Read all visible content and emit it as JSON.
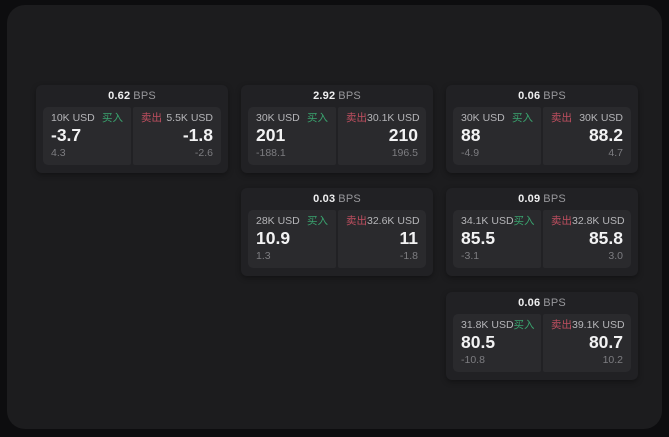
{
  "labels": {
    "bps": "BPS",
    "buy": "买入",
    "sell": "卖出"
  },
  "colors": {
    "background_outer": "#0d0d0f",
    "window_background": "#1c1c1e",
    "card_background": "#212124",
    "panel_background": "#2a2a2d",
    "buy_green": "#3aa46f",
    "sell_red": "#c04f60",
    "primary_text": "#f2f2f3",
    "label_gray": "#b5b5b8",
    "muted_gray": "#7d7d81"
  },
  "cards": [
    {
      "bps": "0.62",
      "buy": {
        "size": "10K USD",
        "price": "-3.7",
        "delta": "4.3"
      },
      "sell": {
        "size": "5.5K USD",
        "price": "-1.8",
        "delta": "-2.6"
      }
    },
    {
      "bps": "2.92",
      "buy": {
        "size": "30K USD",
        "price": "201",
        "delta": "-188.1"
      },
      "sell": {
        "size": "30.1K USD",
        "price": "210",
        "delta": "196.5"
      }
    },
    {
      "bps": "0.06",
      "buy": {
        "size": "30K USD",
        "price": "88",
        "delta": "-4.9"
      },
      "sell": {
        "size": "30K USD",
        "price": "88.2",
        "delta": "4.7"
      }
    },
    {
      "bps": "0.03",
      "buy": {
        "size": "28K USD",
        "price": "10.9",
        "delta": "1.3"
      },
      "sell": {
        "size": "32.6K USD",
        "price": "11",
        "delta": "-1.8"
      }
    },
    {
      "bps": "0.09",
      "buy": {
        "size": "34.1K USD",
        "price": "85.5",
        "delta": "-3.1"
      },
      "sell": {
        "size": "32.8K USD",
        "price": "85.8",
        "delta": "3.0"
      }
    },
    {
      "bps": "0.06",
      "buy": {
        "size": "31.8K USD",
        "price": "80.5",
        "delta": "-10.8"
      },
      "sell": {
        "size": "39.1K USD",
        "price": "80.7",
        "delta": "10.2"
      }
    }
  ]
}
